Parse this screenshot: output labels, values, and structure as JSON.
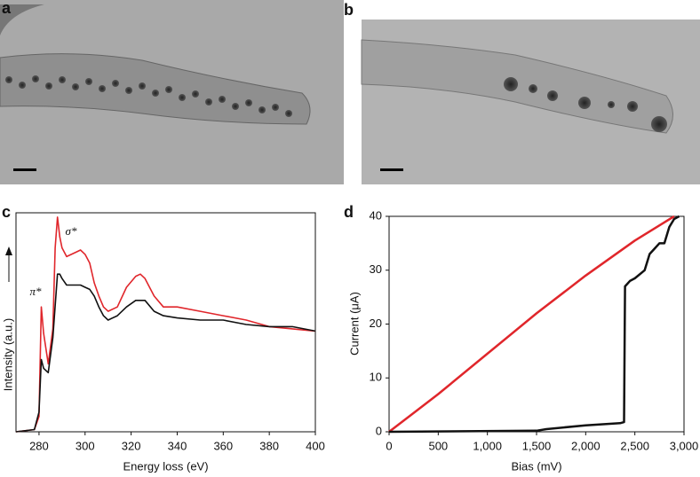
{
  "panel_labels": [
    "a",
    "b",
    "c",
    "d"
  ],
  "chart_data": [
    {
      "type": "line",
      "xlabel": "Energy loss (eV)",
      "ylabel": "Intensity (a.u.)",
      "annotations": [
        "π*",
        "σ*"
      ],
      "xlim": [
        270,
        400
      ],
      "xticks": [
        280,
        300,
        320,
        340,
        360,
        380,
        400
      ],
      "ylim": [
        0,
        100
      ],
      "series": [
        {
          "color": "#e0262b",
          "x": [
            270,
            278,
            280,
            281,
            282,
            284,
            286,
            287,
            288,
            289,
            290,
            292,
            296,
            298,
            300,
            302,
            304,
            306,
            308,
            310,
            314,
            318,
            322,
            324,
            326,
            330,
            334,
            340,
            350,
            360,
            370,
            380,
            390,
            400
          ],
          "values": [
            0,
            1,
            7,
            57,
            45,
            31,
            47,
            84,
            98,
            89,
            84,
            80,
            82,
            83,
            81,
            77,
            68,
            62,
            57,
            55,
            57,
            66,
            71,
            72,
            70,
            62,
            57,
            57,
            55,
            53,
            51,
            48,
            47,
            46
          ]
        },
        {
          "color": "#111111",
          "x": [
            270,
            278,
            280,
            281,
            282,
            284,
            286,
            288,
            289,
            290,
            292,
            296,
            298,
            300,
            302,
            304,
            306,
            308,
            310,
            314,
            318,
            322,
            324,
            326,
            330,
            334,
            340,
            350,
            360,
            370,
            380,
            390,
            400
          ],
          "values": [
            0,
            1,
            9,
            33,
            29,
            27,
            43,
            72,
            72,
            70,
            67,
            67,
            67,
            66,
            65,
            62,
            57,
            53,
            51,
            53,
            57,
            60,
            60,
            60,
            55,
            53,
            52,
            51,
            51,
            49,
            48,
            48,
            46
          ]
        }
      ]
    },
    {
      "type": "line",
      "xlabel": "Bias (mV)",
      "ylabel": "Current (μA)",
      "xlim": [
        0,
        3000
      ],
      "xticks": [
        0,
        500,
        {
          "value": 1000,
          "label": "1,000"
        },
        {
          "value": 1500,
          "label": "1,500"
        },
        {
          "value": 2000,
          "label": "2,000"
        },
        {
          "value": 2500,
          "label": "2,500"
        },
        {
          "value": 3000,
          "label": "3,000"
        }
      ],
      "ylim": [
        0,
        40
      ],
      "yticks": [
        0,
        10,
        20,
        30,
        40
      ],
      "series": [
        {
          "color": "#e0262b",
          "x": [
            0,
            250,
            500,
            1000,
            1500,
            2000,
            2500,
            2900
          ],
          "values": [
            0,
            3.5,
            7,
            14.5,
            22,
            29,
            35.5,
            40
          ]
        },
        {
          "color": "#111111",
          "x": [
            0,
            1500,
            1600,
            2000,
            2350,
            2390,
            2400,
            2450,
            2500,
            2600,
            2650,
            2700,
            2750,
            2800,
            2850,
            2900,
            2950
          ],
          "values": [
            0,
            0.2,
            0.5,
            1.2,
            1.6,
            1.8,
            27,
            28,
            28.5,
            30,
            33,
            34,
            35,
            35,
            38,
            39.5,
            40
          ]
        }
      ]
    }
  ]
}
